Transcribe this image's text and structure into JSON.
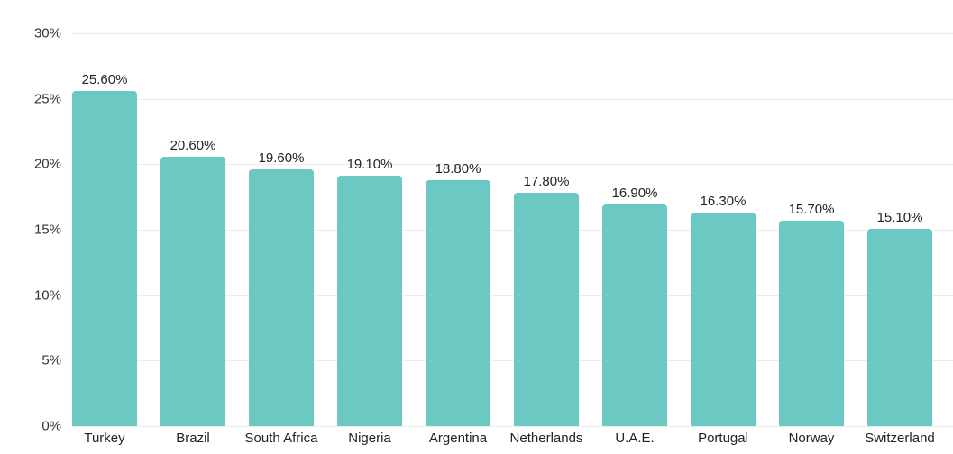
{
  "chart_data": {
    "type": "bar",
    "title": "",
    "xlabel": "",
    "ylabel": "",
    "categories": [
      "Turkey",
      "Brazil",
      "South Africa",
      "Nigeria",
      "Argentina",
      "Netherlands",
      "U.A.E.",
      "Portugal",
      "Norway",
      "Switzerland"
    ],
    "values": [
      25.6,
      20.6,
      19.6,
      19.1,
      18.8,
      17.8,
      16.9,
      16.3,
      15.7,
      15.1
    ],
    "value_labels": [
      "25.60%",
      "20.60%",
      "19.60%",
      "19.10%",
      "18.80%",
      "17.80%",
      "16.90%",
      "16.30%",
      "15.70%",
      "15.10%"
    ],
    "ylim": [
      0,
      30
    ],
    "yticks": [
      0,
      5,
      10,
      15,
      20,
      25,
      30
    ],
    "ytick_labels": [
      "0%",
      "5%",
      "10%",
      "15%",
      "20%",
      "25%",
      "30%"
    ],
    "grid": true,
    "legend": null,
    "bar_color": "#6cc8c2"
  }
}
